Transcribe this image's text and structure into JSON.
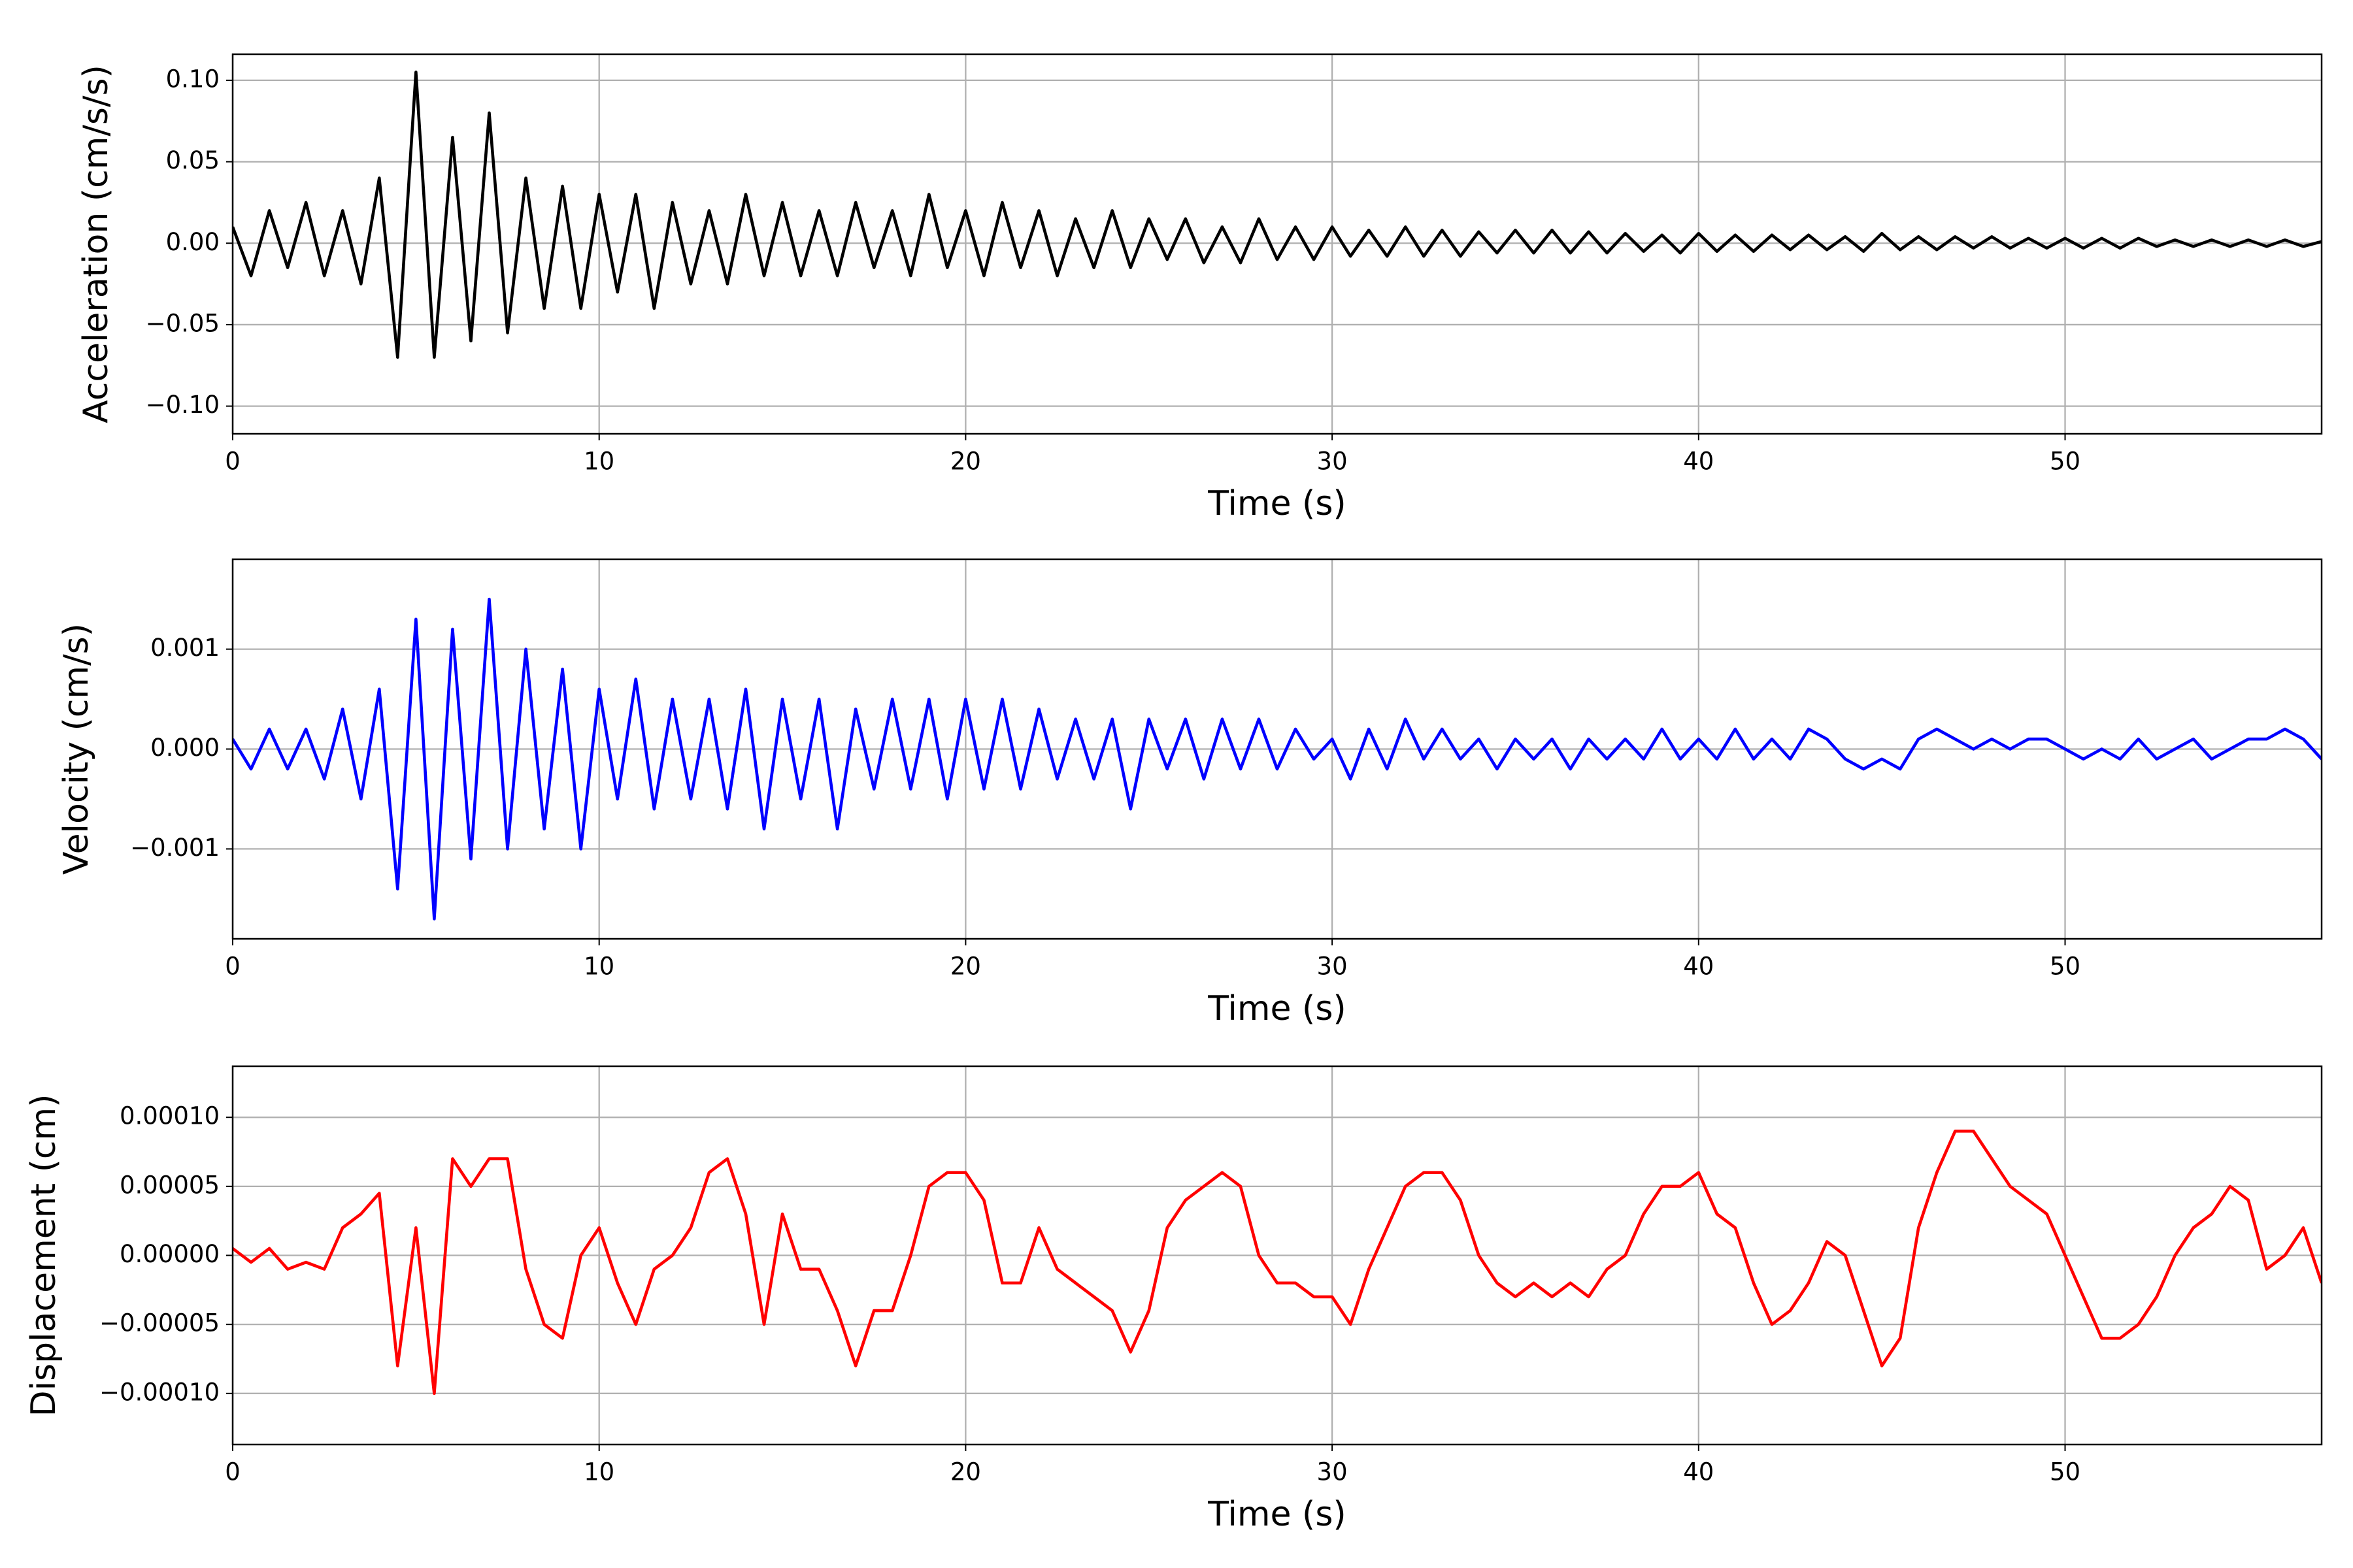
{
  "chart_data": [
    {
      "type": "line",
      "xlabel": "Time (s)",
      "ylabel": "Acceleration (cm/s/s)",
      "color": "#000000",
      "grid": true,
      "x": [
        0,
        0.5,
        1,
        1.5,
        2,
        2.5,
        3,
        3.5,
        4,
        4.5,
        5,
        5.5,
        6,
        6.5,
        7,
        7.5,
        8,
        8.5,
        9,
        9.5,
        10,
        10.5,
        11,
        11.5,
        12,
        12.5,
        13,
        13.5,
        14,
        14.5,
        15,
        15.5,
        16,
        16.5,
        17,
        17.5,
        18,
        18.5,
        19,
        19.5,
        20,
        20.5,
        21,
        21.5,
        22,
        22.5,
        23,
        23.5,
        24,
        24.5,
        25,
        25.5,
        26,
        26.5,
        27,
        27.5,
        28,
        28.5,
        29,
        29.5,
        30,
        30.5,
        31,
        31.5,
        32,
        32.5,
        33,
        33.5,
        34,
        34.5,
        35,
        35.5,
        36,
        36.5,
        37,
        37.5,
        38,
        38.5,
        39,
        39.5,
        40,
        40.5,
        41,
        41.5,
        42,
        42.5,
        43,
        43.5,
        44,
        44.5,
        45,
        45.5,
        46,
        46.5,
        47,
        47.5,
        48,
        48.5,
        49,
        49.5,
        50,
        50.5,
        51,
        51.5,
        52,
        52.5,
        53,
        53.5,
        54,
        54.5,
        55,
        55.5,
        56,
        56.5,
        57
      ],
      "values": [
        0.01,
        -0.02,
        0.02,
        -0.015,
        0.025,
        -0.02,
        0.02,
        -0.025,
        0.04,
        -0.07,
        0.105,
        -0.07,
        0.065,
        -0.06,
        0.08,
        -0.055,
        0.04,
        -0.04,
        0.035,
        -0.04,
        0.03,
        -0.03,
        0.03,
        -0.04,
        0.025,
        -0.025,
        0.02,
        -0.025,
        0.03,
        -0.02,
        0.025,
        -0.02,
        0.02,
        -0.02,
        0.025,
        -0.015,
        0.02,
        -0.02,
        0.03,
        -0.015,
        0.02,
        -0.02,
        0.025,
        -0.015,
        0.02,
        -0.02,
        0.015,
        -0.015,
        0.02,
        -0.015,
        0.015,
        -0.01,
        0.015,
        -0.012,
        0.01,
        -0.012,
        0.015,
        -0.01,
        0.01,
        -0.01,
        0.01,
        -0.008,
        0.008,
        -0.008,
        0.01,
        -0.008,
        0.008,
        -0.008,
        0.007,
        -0.006,
        0.008,
        -0.006,
        0.008,
        -0.006,
        0.007,
        -0.006,
        0.006,
        -0.005,
        0.005,
        -0.006,
        0.006,
        -0.005,
        0.005,
        -0.005,
        0.005,
        -0.004,
        0.005,
        -0.004,
        0.004,
        -0.005,
        0.006,
        -0.004,
        0.004,
        -0.004,
        0.004,
        -0.003,
        0.004,
        -0.003,
        0.003,
        -0.003,
        0.003,
        -0.003,
        0.003,
        -0.003,
        0.003,
        -0.002,
        0.002,
        -0.002,
        0.002,
        -0.002,
        0.002,
        -0.002,
        0.002,
        -0.002,
        0.001
      ],
      "xlim": [
        0,
        57
      ],
      "xticks": [
        0,
        10,
        20,
        30,
        40,
        50
      ],
      "ylim": [
        -0.117,
        0.116
      ],
      "yticks": [
        {
          "value": -0.1,
          "label": "−0.10"
        },
        {
          "value": -0.05,
          "label": "−0.05"
        },
        {
          "value": 0,
          "label": "0.00"
        },
        {
          "value": 0.05,
          "label": "0.05"
        },
        {
          "value": 0.1,
          "label": "0.10"
        }
      ]
    },
    {
      "type": "line",
      "xlabel": "Time (s)",
      "ylabel": "Velocity (cm/s)",
      "color": "#0000ff",
      "grid": true,
      "x": [
        0,
        0.5,
        1,
        1.5,
        2,
        2.5,
        3,
        3.5,
        4,
        4.5,
        5,
        5.5,
        6,
        6.5,
        7,
        7.5,
        8,
        8.5,
        9,
        9.5,
        10,
        10.5,
        11,
        11.5,
        12,
        12.5,
        13,
        13.5,
        14,
        14.5,
        15,
        15.5,
        16,
        16.5,
        17,
        17.5,
        18,
        18.5,
        19,
        19.5,
        20,
        20.5,
        21,
        21.5,
        22,
        22.5,
        23,
        23.5,
        24,
        24.5,
        25,
        25.5,
        26,
        26.5,
        27,
        27.5,
        28,
        28.5,
        29,
        29.5,
        30,
        30.5,
        31,
        31.5,
        32,
        32.5,
        33,
        33.5,
        34,
        34.5,
        35,
        35.5,
        36,
        36.5,
        37,
        37.5,
        38,
        38.5,
        39,
        39.5,
        40,
        40.5,
        41,
        41.5,
        42,
        42.5,
        43,
        43.5,
        44,
        44.5,
        45,
        45.5,
        46,
        46.5,
        47,
        47.5,
        48,
        48.5,
        49,
        49.5,
        50,
        50.5,
        51,
        51.5,
        52,
        52.5,
        53,
        53.5,
        54,
        54.5,
        55,
        55.5,
        56,
        56.5,
        57
      ],
      "values": [
        0.0001,
        -0.0002,
        0.0002,
        -0.0002,
        0.0002,
        -0.0003,
        0.0004,
        -0.0005,
        0.0006,
        -0.0014,
        0.0013,
        -0.0017,
        0.0012,
        -0.0011,
        0.0015,
        -0.001,
        0.001,
        -0.0008,
        0.0008,
        -0.001,
        0.0006,
        -0.0005,
        0.0007,
        -0.0006,
        0.0005,
        -0.0005,
        0.0005,
        -0.0006,
        0.0006,
        -0.0008,
        0.0005,
        -0.0005,
        0.0005,
        -0.0008,
        0.0004,
        -0.0004,
        0.0005,
        -0.0004,
        0.0005,
        -0.0005,
        0.0005,
        -0.0004,
        0.0005,
        -0.0004,
        0.0004,
        -0.0003,
        0.0003,
        -0.0003,
        0.0003,
        -0.0006,
        0.0003,
        -0.0002,
        0.0003,
        -0.0003,
        0.0003,
        -0.0002,
        0.0003,
        -0.0002,
        0.0002,
        -0.0001,
        0.0001,
        -0.0003,
        0.0002,
        -0.0002,
        0.0003,
        -0.0001,
        0.0002,
        -0.0001,
        0.0001,
        -0.0002,
        0.0001,
        -0.0001,
        0.0001,
        -0.0002,
        0.0001,
        -0.0001,
        0.0001,
        -0.0001,
        0.0002,
        -0.0001,
        0.0001,
        -0.0001,
        0.0002,
        -0.0001,
        0.0001,
        -0.0001,
        0.0002,
        0.0001,
        -0.0001,
        -0.0002,
        -0.0001,
        -0.0002,
        0.0001,
        0.0002,
        0.0001,
        0,
        0.0001,
        0,
        0.0001,
        0.0001,
        0,
        -0.0001,
        0,
        -0.0001,
        0.0001,
        -0.0001,
        0,
        0.0001,
        -0.0001,
        0,
        0.0001,
        0.0001,
        0.0002,
        0.0001,
        -0.0001
      ],
      "xlim": [
        0,
        57
      ],
      "xticks": [
        0,
        10,
        20,
        30,
        40,
        50
      ],
      "ylim": [
        -0.0019,
        0.0019
      ],
      "yticks": [
        {
          "value": -0.001,
          "label": "−0.001"
        },
        {
          "value": 0,
          "label": "0.000"
        },
        {
          "value": 0.001,
          "label": "0.001"
        }
      ]
    },
    {
      "type": "line",
      "xlabel": "Time (s)",
      "ylabel": "Displacement (cm)",
      "color": "#ff0000",
      "grid": true,
      "x": [
        0,
        0.5,
        1,
        1.5,
        2,
        2.5,
        3,
        3.5,
        4,
        4.5,
        5,
        5.5,
        6,
        6.5,
        7,
        7.5,
        8,
        8.5,
        9,
        9.5,
        10,
        10.5,
        11,
        11.5,
        12,
        12.5,
        13,
        13.5,
        14,
        14.5,
        15,
        15.5,
        16,
        16.5,
        17,
        17.5,
        18,
        18.5,
        19,
        19.5,
        20,
        20.5,
        21,
        21.5,
        22,
        22.5,
        23,
        23.5,
        24,
        24.5,
        25,
        25.5,
        26,
        26.5,
        27,
        27.5,
        28,
        28.5,
        29,
        29.5,
        30,
        30.5,
        31,
        31.5,
        32,
        32.5,
        33,
        33.5,
        34,
        34.5,
        35,
        35.5,
        36,
        36.5,
        37,
        37.5,
        38,
        38.5,
        39,
        39.5,
        40,
        40.5,
        41,
        41.5,
        42,
        42.5,
        43,
        43.5,
        44,
        44.5,
        45,
        45.5,
        46,
        46.5,
        47,
        47.5,
        48,
        48.5,
        49,
        49.5,
        50,
        50.5,
        51,
        51.5,
        52,
        52.5,
        53,
        53.5,
        54,
        54.5,
        55,
        55.5,
        56,
        56.5,
        57
      ],
      "values": [
        5e-06,
        -5e-06,
        5e-06,
        -1e-05,
        -5e-06,
        -1e-05,
        2e-05,
        3e-05,
        4.5e-05,
        -8e-05,
        2e-05,
        -0.0001,
        7e-05,
        5e-05,
        7e-05,
        7e-05,
        -1e-05,
        -5e-05,
        -6e-05,
        0,
        2e-05,
        -2e-05,
        -5e-05,
        -1e-05,
        0,
        2e-05,
        6e-05,
        7e-05,
        3e-05,
        -5e-05,
        3e-05,
        -1e-05,
        -1e-05,
        -4e-05,
        -8e-05,
        -4e-05,
        -4e-05,
        0,
        5e-05,
        6e-05,
        6e-05,
        4e-05,
        -2e-05,
        -2e-05,
        2e-05,
        -1e-05,
        -2e-05,
        -3e-05,
        -4e-05,
        -7e-05,
        -4e-05,
        2e-05,
        4e-05,
        5e-05,
        6e-05,
        5e-05,
        0,
        -2e-05,
        -2e-05,
        -3e-05,
        -3e-05,
        -5e-05,
        -1e-05,
        2e-05,
        5e-05,
        6e-05,
        6e-05,
        4e-05,
        0,
        -2e-05,
        -3e-05,
        -2e-05,
        -3e-05,
        -2e-05,
        -3e-05,
        -1e-05,
        0,
        3e-05,
        5e-05,
        5e-05,
        6e-05,
        3e-05,
        2e-05,
        -2e-05,
        -5e-05,
        -4e-05,
        -2e-05,
        1e-05,
        0,
        -4e-05,
        -8e-05,
        -6e-05,
        2e-05,
        6e-05,
        9e-05,
        9e-05,
        7e-05,
        5e-05,
        4e-05,
        3e-05,
        0,
        -3e-05,
        -6e-05,
        -6e-05,
        -5e-05,
        -3e-05,
        0,
        2e-05,
        3e-05,
        5e-05,
        4e-05,
        -1e-05,
        0,
        2e-05,
        -2e-05
      ],
      "xlim": [
        0,
        57
      ],
      "xticks": [
        0,
        10,
        20,
        30,
        40,
        50
      ],
      "ylim": [
        -0.000137,
        0.000137
      ],
      "yticks": [
        {
          "value": -0.0001,
          "label": "−0.00010"
        },
        {
          "value": -5e-05,
          "label": "−0.00005"
        },
        {
          "value": 0,
          "label": "0.00000"
        },
        {
          "value": 5e-05,
          "label": "0.00005"
        },
        {
          "value": 0.0001,
          "label": "0.00010"
        }
      ]
    }
  ]
}
